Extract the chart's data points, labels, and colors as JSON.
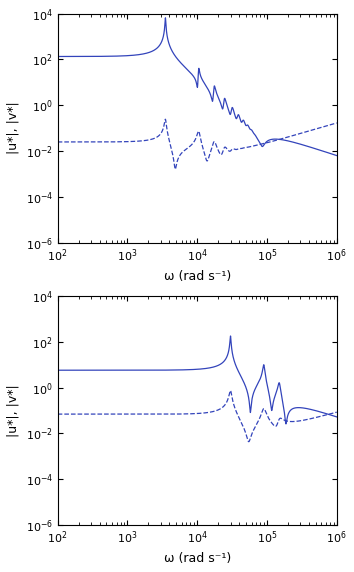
{
  "blue_color": "#3344bb",
  "xlim_log": [
    2,
    6
  ],
  "ylim": [
    1e-06,
    10000.0
  ],
  "xlabel": "ω (rad s⁻¹)",
  "ylabel": "|u*|, |v*|",
  "figsize": [
    3.54,
    5.72
  ],
  "dpi": 100
}
